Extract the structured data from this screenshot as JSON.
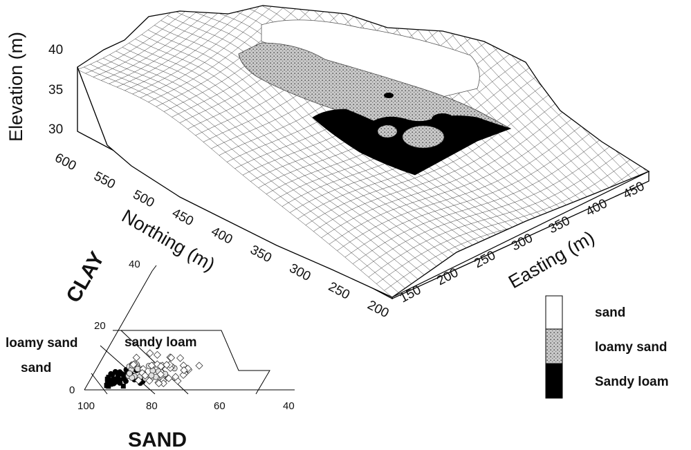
{
  "surface": {
    "elevation_label": "Elevation (m)",
    "northing_label": "Northing (m)",
    "easting_label": "Easting (m)",
    "elevation_ticks": [
      "30",
      "35",
      "40"
    ],
    "northing_ticks": [
      "600",
      "550",
      "500",
      "450",
      "400",
      "350",
      "300",
      "250",
      "200"
    ],
    "easting_ticks": [
      "150",
      "200",
      "250",
      "300",
      "350",
      "400",
      "450"
    ]
  },
  "triangle": {
    "clay_label": "CLAY",
    "sand_label": "SAND",
    "clay_ticks": [
      "0",
      "20",
      "40"
    ],
    "sand_ticks": [
      "100",
      "80",
      "60",
      "40"
    ],
    "regions": [
      "loamy sand",
      "sandy loam",
      "sand"
    ]
  },
  "legend": {
    "items": [
      {
        "label": "sand",
        "color": "#ffffff"
      },
      {
        "label": "loamy sand",
        "color": "#b8b8b8"
      },
      {
        "label": "Sandy loam",
        "color": "#000000"
      }
    ]
  }
}
